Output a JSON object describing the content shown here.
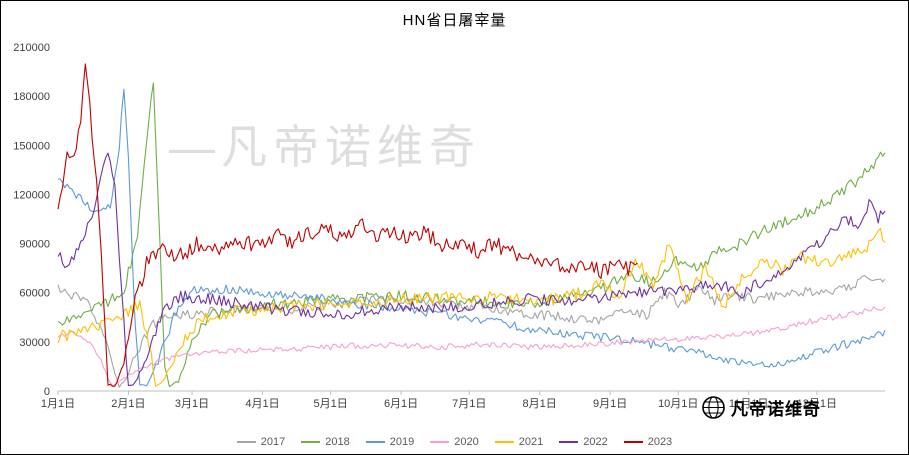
{
  "title": "HN省日屠宰量",
  "watermark": "—凡帝诺维奇",
  "brand": {
    "logo": "globe-icon",
    "text": "凡帝诺维奇"
  },
  "chart_data": {
    "type": "line",
    "title": "HN省日屠宰量",
    "grid": false,
    "legend_position": "bottom",
    "y_axis": {
      "min": 0,
      "max": 210000,
      "tick_values": [
        0,
        30000,
        60000,
        90000,
        120000,
        150000,
        180000,
        210000
      ],
      "tick_labels": [
        "0",
        "30000",
        "60000",
        "90000",
        "120000",
        "150000",
        "180000",
        "210000"
      ]
    },
    "x_axis": {
      "tick_days": [
        1,
        32,
        60,
        91,
        121,
        152,
        182,
        213,
        244,
        274,
        305,
        335
      ],
      "tick_labels": [
        "1月1日",
        "2月1日",
        "3月1日",
        "4月1日",
        "5月1日",
        "6月1日",
        "7月1日",
        "8月1日",
        "9月1日",
        "10月1日",
        "11月1日",
        "12月1日"
      ]
    },
    "series": [
      {
        "name": "2017",
        "color": "#a5a5a5",
        "noise": 3000,
        "points": [
          [
            1,
            62000
          ],
          [
            8,
            58000
          ],
          [
            15,
            52000
          ],
          [
            22,
            30000
          ],
          [
            26,
            12000
          ],
          [
            28,
            2500
          ],
          [
            31,
            8000
          ],
          [
            36,
            25000
          ],
          [
            42,
            40000
          ],
          [
            50,
            46000
          ],
          [
            60,
            47000
          ],
          [
            75,
            49000
          ],
          [
            90,
            51000
          ],
          [
            105,
            50000
          ],
          [
            120,
            53000
          ],
          [
            135,
            55000
          ],
          [
            150,
            56000
          ],
          [
            165,
            54000
          ],
          [
            180,
            52000
          ],
          [
            195,
            50000
          ],
          [
            210,
            47000
          ],
          [
            225,
            45000
          ],
          [
            240,
            43000
          ],
          [
            252,
            50000
          ],
          [
            260,
            46000
          ],
          [
            268,
            60000
          ],
          [
            275,
            52000
          ],
          [
            283,
            64000
          ],
          [
            290,
            55000
          ],
          [
            300,
            58000
          ],
          [
            310,
            56000
          ],
          [
            320,
            60000
          ],
          [
            330,
            61000
          ],
          [
            340,
            59000
          ],
          [
            350,
            64000
          ],
          [
            358,
            70000
          ],
          [
            365,
            67000
          ]
        ]
      },
      {
        "name": "2018",
        "color": "#70ad47",
        "noise": 3500,
        "points": [
          [
            1,
            40000
          ],
          [
            10,
            46000
          ],
          [
            20,
            52000
          ],
          [
            30,
            62000
          ],
          [
            36,
            95000
          ],
          [
            40,
            150000
          ],
          [
            43,
            190000
          ],
          [
            45,
            120000
          ],
          [
            48,
            15000
          ],
          [
            50,
            2500
          ],
          [
            54,
            6000
          ],
          [
            60,
            30000
          ],
          [
            68,
            46000
          ],
          [
            80,
            50000
          ],
          [
            95,
            53000
          ],
          [
            110,
            55000
          ],
          [
            125,
            56000
          ],
          [
            140,
            57000
          ],
          [
            155,
            58000
          ],
          [
            170,
            56000
          ],
          [
            185,
            55000
          ],
          [
            200,
            53000
          ],
          [
            215,
            55000
          ],
          [
            230,
            58000
          ],
          [
            242,
            63000
          ],
          [
            252,
            72000
          ],
          [
            262,
            66000
          ],
          [
            272,
            80000
          ],
          [
            282,
            74000
          ],
          [
            292,
            86000
          ],
          [
            302,
            90000
          ],
          [
            312,
            99000
          ],
          [
            322,
            104000
          ],
          [
            332,
            110000
          ],
          [
            342,
            118000
          ],
          [
            352,
            128000
          ],
          [
            360,
            138000
          ],
          [
            364,
            144000
          ],
          [
            365,
            142000
          ]
        ]
      },
      {
        "name": "2019",
        "color": "#5b9bd5",
        "noise": 2800,
        "points": [
          [
            1,
            131000
          ],
          [
            6,
            124000
          ],
          [
            12,
            116000
          ],
          [
            18,
            108000
          ],
          [
            24,
            112000
          ],
          [
            28,
            150000
          ],
          [
            30,
            186000
          ],
          [
            32,
            140000
          ],
          [
            35,
            40000
          ],
          [
            37,
            4000
          ],
          [
            40,
            3000
          ],
          [
            45,
            18000
          ],
          [
            52,
            45000
          ],
          [
            60,
            61000
          ],
          [
            75,
            62000
          ],
          [
            90,
            60000
          ],
          [
            105,
            58000
          ],
          [
            120,
            56000
          ],
          [
            135,
            53000
          ],
          [
            150,
            51000
          ],
          [
            165,
            48000
          ],
          [
            180,
            45000
          ],
          [
            195,
            42000
          ],
          [
            210,
            38000
          ],
          [
            225,
            35000
          ],
          [
            240,
            33000
          ],
          [
            255,
            30000
          ],
          [
            270,
            27000
          ],
          [
            283,
            23000
          ],
          [
            295,
            19000
          ],
          [
            305,
            17000
          ],
          [
            315,
            15500
          ],
          [
            325,
            19000
          ],
          [
            335,
            24000
          ],
          [
            345,
            28000
          ],
          [
            355,
            31000
          ],
          [
            365,
            35000
          ]
        ]
      },
      {
        "name": "2020",
        "color": "#f79fd2",
        "noise": 1800,
        "points": [
          [
            1,
            33000
          ],
          [
            8,
            35000
          ],
          [
            14,
            31000
          ],
          [
            19,
            22000
          ],
          [
            23,
            8000
          ],
          [
            25,
            3000
          ],
          [
            29,
            7000
          ],
          [
            35,
            12000
          ],
          [
            45,
            18000
          ],
          [
            55,
            22000
          ],
          [
            70,
            24000
          ],
          [
            90,
            25000
          ],
          [
            110,
            26000
          ],
          [
            130,
            27500
          ],
          [
            150,
            28000
          ],
          [
            170,
            27000
          ],
          [
            190,
            28500
          ],
          [
            210,
            26500
          ],
          [
            230,
            28000
          ],
          [
            250,
            30000
          ],
          [
            270,
            31500
          ],
          [
            290,
            33000
          ],
          [
            305,
            35000
          ],
          [
            318,
            38000
          ],
          [
            330,
            42000
          ],
          [
            342,
            45000
          ],
          [
            354,
            48000
          ],
          [
            365,
            51000
          ]
        ]
      },
      {
        "name": "2021",
        "color": "#ffc000",
        "noise": 3800,
        "points": [
          [
            1,
            33000
          ],
          [
            10,
            36000
          ],
          [
            20,
            41000
          ],
          [
            30,
            46000
          ],
          [
            37,
            52000
          ],
          [
            41,
            30000
          ],
          [
            44,
            3000
          ],
          [
            47,
            6000
          ],
          [
            53,
            22000
          ],
          [
            62,
            42000
          ],
          [
            72,
            47000
          ],
          [
            85,
            49000
          ],
          [
            100,
            51000
          ],
          [
            115,
            53000
          ],
          [
            130,
            54000
          ],
          [
            145,
            55000
          ],
          [
            160,
            56500
          ],
          [
            175,
            57500
          ],
          [
            190,
            57000
          ],
          [
            205,
            55500
          ],
          [
            220,
            56000
          ],
          [
            232,
            60000
          ],
          [
            240,
            66000
          ],
          [
            248,
            56000
          ],
          [
            256,
            80000
          ],
          [
            263,
            62000
          ],
          [
            270,
            90000
          ],
          [
            278,
            56000
          ],
          [
            286,
            76000
          ],
          [
            294,
            52000
          ],
          [
            303,
            70000
          ],
          [
            312,
            80000
          ],
          [
            320,
            74000
          ],
          [
            328,
            82000
          ],
          [
            336,
            78000
          ],
          [
            344,
            81000
          ],
          [
            352,
            84000
          ],
          [
            359,
            90000
          ],
          [
            363,
            96000
          ],
          [
            365,
            93000
          ]
        ]
      },
      {
        "name": "2022",
        "color": "#7030a0",
        "noise": 3500,
        "points": [
          [
            1,
            85000
          ],
          [
            5,
            76000
          ],
          [
            10,
            88000
          ],
          [
            15,
            104000
          ],
          [
            20,
            130000
          ],
          [
            23,
            148000
          ],
          [
            26,
            125000
          ],
          [
            29,
            60000
          ],
          [
            32,
            3000
          ],
          [
            35,
            5000
          ],
          [
            40,
            22000
          ],
          [
            47,
            48000
          ],
          [
            55,
            58000
          ],
          [
            68,
            56000
          ],
          [
            82,
            53000
          ],
          [
            96,
            50000
          ],
          [
            110,
            48000
          ],
          [
            124,
            46500
          ],
          [
            138,
            49000
          ],
          [
            152,
            52000
          ],
          [
            166,
            50500
          ],
          [
            180,
            52000
          ],
          [
            194,
            54000
          ],
          [
            208,
            56000
          ],
          [
            222,
            55000
          ],
          [
            236,
            56500
          ],
          [
            250,
            59000
          ],
          [
            264,
            61000
          ],
          [
            278,
            62500
          ],
          [
            292,
            65000
          ],
          [
            302,
            60000
          ],
          [
            312,
            68000
          ],
          [
            322,
            76000
          ],
          [
            332,
            86000
          ],
          [
            341,
            96000
          ],
          [
            348,
            106000
          ],
          [
            353,
            99000
          ],
          [
            358,
            114000
          ],
          [
            362,
            106000
          ],
          [
            365,
            111000
          ]
        ]
      },
      {
        "name": "2023",
        "color": "#c00000",
        "noise": 5000,
        "points": [
          [
            1,
            112000
          ],
          [
            3,
            128000
          ],
          [
            5,
            150000
          ],
          [
            8,
            142000
          ],
          [
            11,
            165000
          ],
          [
            13,
            198000
          ],
          [
            15,
            172000
          ],
          [
            18,
            128000
          ],
          [
            21,
            60000
          ],
          [
            23,
            4000
          ],
          [
            26,
            3000
          ],
          [
            30,
            16000
          ],
          [
            35,
            55000
          ],
          [
            40,
            78000
          ],
          [
            47,
            86000
          ],
          [
            55,
            83000
          ],
          [
            63,
            90000
          ],
          [
            72,
            87000
          ],
          [
            80,
            92000
          ],
          [
            88,
            89000
          ],
          [
            96,
            95000
          ],
          [
            104,
            91000
          ],
          [
            112,
            97000
          ],
          [
            120,
            101000
          ],
          [
            127,
            93000
          ],
          [
            134,
            104000
          ],
          [
            141,
            94000
          ],
          [
            148,
            98000
          ],
          [
            155,
            93000
          ],
          [
            163,
            96000
          ],
          [
            170,
            90000
          ],
          [
            178,
            88000
          ],
          [
            186,
            86000
          ],
          [
            194,
            89000
          ],
          [
            202,
            84000
          ],
          [
            210,
            81000
          ],
          [
            218,
            79000
          ],
          [
            226,
            74000
          ],
          [
            233,
            78000
          ],
          [
            240,
            72000
          ],
          [
            246,
            79000
          ],
          [
            251,
            74000
          ],
          [
            256,
            77000
          ]
        ]
      }
    ]
  }
}
